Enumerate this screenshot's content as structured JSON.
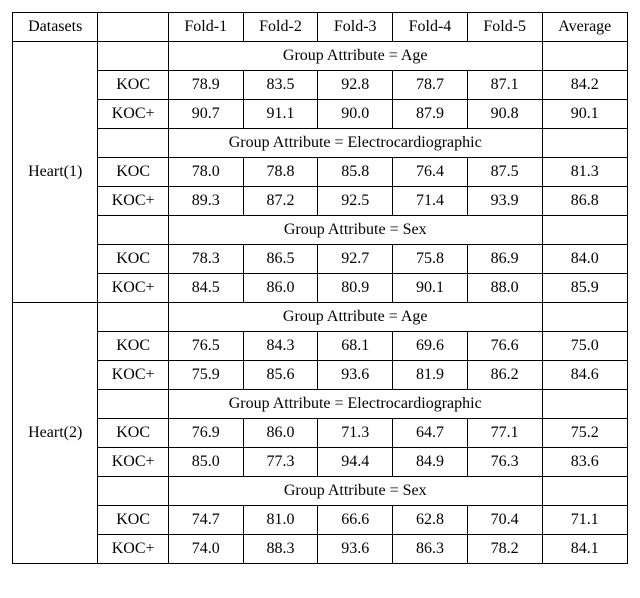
{
  "fontsize_pt": 12,
  "font_family": "Times New Roman",
  "border_color": "#000000",
  "background_color": "#ffffff",
  "text_color": "#000000",
  "columns": {
    "datasets": "Datasets",
    "method_blank": "",
    "folds": [
      "Fold-1",
      "Fold-2",
      "Fold-3",
      "Fold-4",
      "Fold-5"
    ],
    "average": "Average"
  },
  "datasets": [
    {
      "name": "Heart(1)",
      "groups": [
        {
          "label": "Group Attribute = Age",
          "rows": [
            {
              "method": "KOC",
              "folds": [
                "78.9",
                "83.5",
                "92.8",
                "78.7",
                "87.1"
              ],
              "avg": "84.2"
            },
            {
              "method": "KOC+",
              "folds": [
                "90.7",
                "91.1",
                "90.0",
                "87.9",
                "90.8"
              ],
              "avg": "90.1"
            }
          ]
        },
        {
          "label": "Group Attribute = Electrocardiographic",
          "rows": [
            {
              "method": "KOC",
              "folds": [
                "78.0",
                "78.8",
                "85.8",
                "76.4",
                "87.5"
              ],
              "avg": "81.3"
            },
            {
              "method": "KOC+",
              "folds": [
                "89.3",
                "87.2",
                "92.5",
                "71.4",
                "93.9"
              ],
              "avg": "86.8"
            }
          ]
        },
        {
          "label": "Group Attribute = Sex",
          "rows": [
            {
              "method": "KOC",
              "folds": [
                "78.3",
                "86.5",
                "92.7",
                "75.8",
                "86.9"
              ],
              "avg": "84.0"
            },
            {
              "method": "KOC+",
              "folds": [
                "84.5",
                "86.0",
                "80.9",
                "90.1",
                "88.0"
              ],
              "avg": "85.9"
            }
          ]
        }
      ]
    },
    {
      "name": "Heart(2)",
      "groups": [
        {
          "label": "Group Attribute = Age",
          "rows": [
            {
              "method": "KOC",
              "folds": [
                "76.5",
                "84.3",
                "68.1",
                "69.6",
                "76.6"
              ],
              "avg": "75.0"
            },
            {
              "method": "KOC+",
              "folds": [
                "75.9",
                "85.6",
                "93.6",
                "81.9",
                "86.2"
              ],
              "avg": "84.6"
            }
          ]
        },
        {
          "label": "Group Attribute = Electrocardiographic",
          "rows": [
            {
              "method": "KOC",
              "folds": [
                "76.9",
                "86.0",
                "71.3",
                "64.7",
                "77.1"
              ],
              "avg": "75.2"
            },
            {
              "method": "KOC+",
              "folds": [
                "85.0",
                "77.3",
                "94.4",
                "84.9",
                "76.3"
              ],
              "avg": "83.6"
            }
          ]
        },
        {
          "label": "Group Attribute = Sex",
          "rows": [
            {
              "method": "KOC",
              "folds": [
                "74.7",
                "81.0",
                "66.6",
                "62.8",
                "70.4"
              ],
              "avg": "71.1"
            },
            {
              "method": "KOC+",
              "folds": [
                "74.0",
                "88.3",
                "93.6",
                "86.3",
                "78.2"
              ],
              "avg": "84.1"
            }
          ]
        }
      ]
    }
  ]
}
